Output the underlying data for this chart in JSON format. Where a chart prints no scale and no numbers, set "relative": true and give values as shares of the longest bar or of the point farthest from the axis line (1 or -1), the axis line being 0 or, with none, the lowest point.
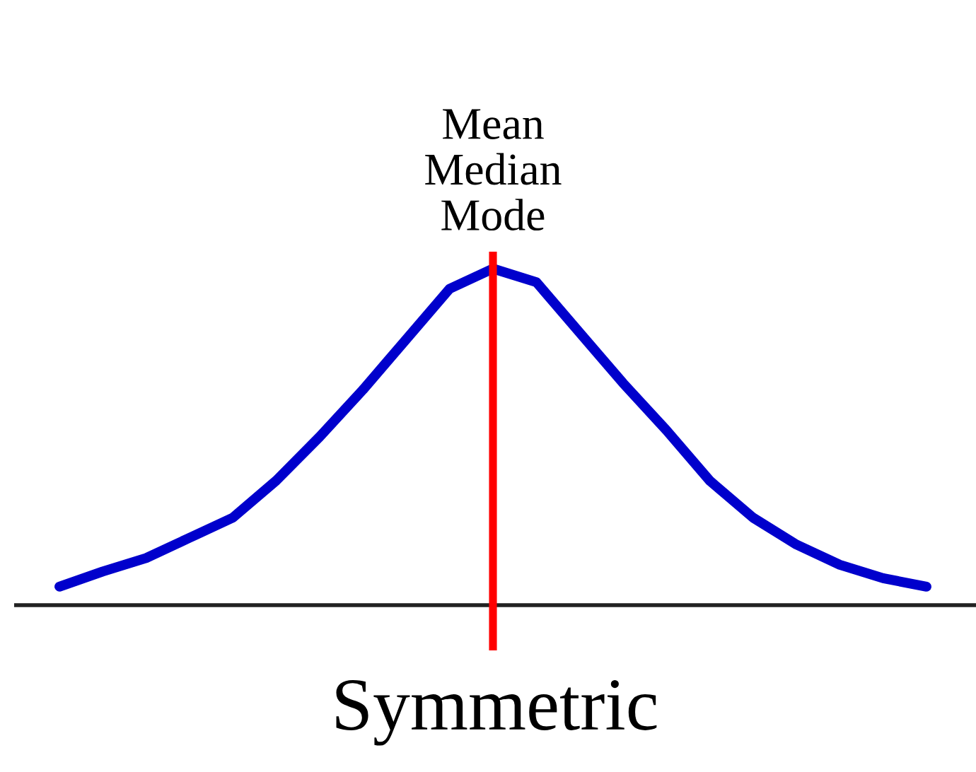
{
  "chart_data": {
    "type": "line",
    "relative": true,
    "xlabel": "Symmetric",
    "categories": [
      null,
      null,
      null,
      null,
      null,
      null,
      null,
      null,
      null,
      null,
      null,
      null,
      null,
      null,
      null,
      null,
      null,
      null,
      null,
      null,
      null
    ],
    "series": [
      {
        "color": "#0000cc",
        "values": [
          0.055,
          0.1,
          0.14,
          0.2,
          0.26,
          0.37,
          0.5,
          0.64,
          0.79,
          0.94,
          1,
          0.96,
          0.81,
          0.66,
          0.52,
          0.37,
          0.26,
          0.18,
          0.12,
          0.08,
          0.055
        ]
      }
    ],
    "annotations": [
      "Mean\nMedian\nMode"
    ],
    "legend": false,
    "marker": "none",
    "line_style": "solid"
  }
}
